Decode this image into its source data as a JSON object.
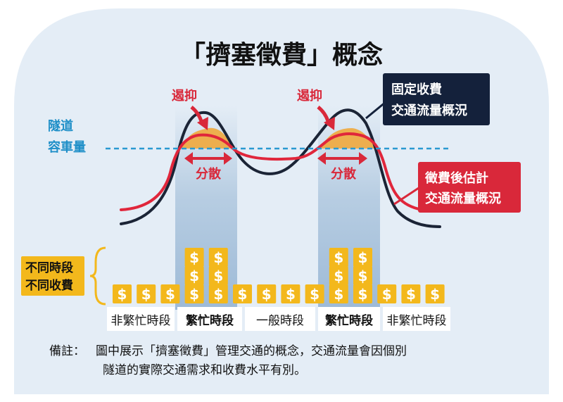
{
  "title": "「擠塞徵費」概念",
  "capacity_label_1": "隧道",
  "capacity_label_2": "容車量",
  "suppress_label": "遏抑",
  "disperse_label": "分散",
  "fixed_toll_box": [
    "固定收費",
    "交通流量概況"
  ],
  "congestion_charge_box": [
    "徵費後估計",
    "交通流量概況"
  ],
  "tag_lines": [
    "不同時段",
    "不同收費"
  ],
  "dollar_symbol": "$",
  "coin_stacks": [
    1,
    1,
    1,
    3,
    3,
    1,
    1,
    1,
    1,
    3,
    3,
    1,
    1,
    1
  ],
  "periods": [
    {
      "label": "非繁忙時段",
      "peak": false
    },
    {
      "label": "繁忙時段",
      "peak": true
    },
    {
      "label": "一般時段",
      "peak": false
    },
    {
      "label": "繁忙時段",
      "peak": true
    },
    {
      "label": "非繁忙時段",
      "peak": false
    }
  ],
  "note_head": "備註：",
  "note_line_1": "圖中展示「擠塞徵費」管理交通的概念，交通流量會因個別",
  "note_line_2": "隧道的實際交通需求和收費水平有別。",
  "colors": {
    "background_dome": "#e4edf6",
    "peak_band": "#b8cfe3",
    "fixed_curve": "#1b2436",
    "charge_curve": "#e0263b",
    "capacity_line": "#2a9ad1",
    "accent_red": "#d9283a",
    "coin_gold": "#f3b81c",
    "navy_box": "#14213b"
  }
}
